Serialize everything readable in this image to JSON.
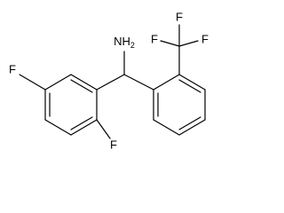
{
  "atoms": {
    "amine": "NH",
    "amine_subscript": "2",
    "fluorines": [
      "F",
      "F",
      "F",
      "F",
      "F"
    ]
  }
}
